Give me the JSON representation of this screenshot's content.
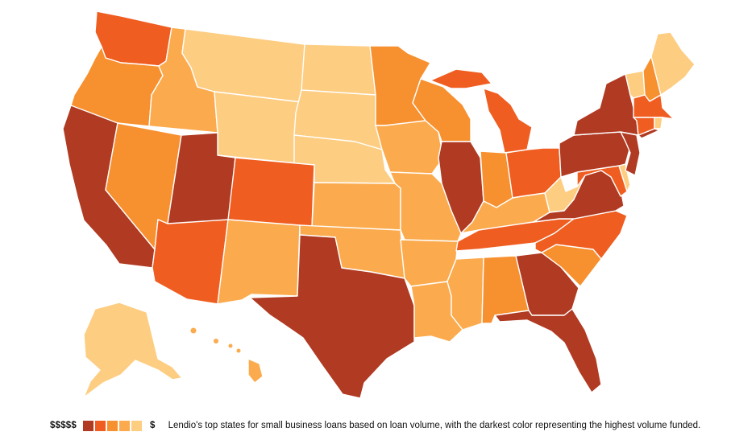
{
  "legend": {
    "high_label": "$$$$$",
    "low_label": "$",
    "caption": "Lendio's top states for small business loans based on loan volume, with the darkest color representing the highest volume funded."
  },
  "colors": {
    "tier1": "#b03a22",
    "tier2": "#ef5d21",
    "tier3": "#f7902f",
    "tier4": "#fbab4e",
    "tier5": "#fdcd82"
  },
  "tiers": {
    "tier1": [
      "CA",
      "UT",
      "TX",
      "IL",
      "GA",
      "FL",
      "NY",
      "PA",
      "NJ",
      "VA"
    ],
    "tier2": [
      "WA",
      "AZ",
      "CO",
      "MI",
      "OH",
      "TN",
      "NC",
      "MA",
      "CT",
      "MD"
    ],
    "tier3": [
      "OR",
      "NV",
      "MN",
      "WI",
      "IN",
      "AL",
      "SC",
      "NH"
    ],
    "tier4": [
      "ID",
      "NM",
      "KS",
      "OK",
      "IA",
      "MO",
      "AR",
      "LA",
      "MS",
      "KY",
      "HI"
    ],
    "tier5": [
      "MT",
      "WY",
      "ND",
      "SD",
      "NE",
      "ME",
      "VT",
      "WV",
      "DE",
      "RI",
      "AK"
    ]
  }
}
